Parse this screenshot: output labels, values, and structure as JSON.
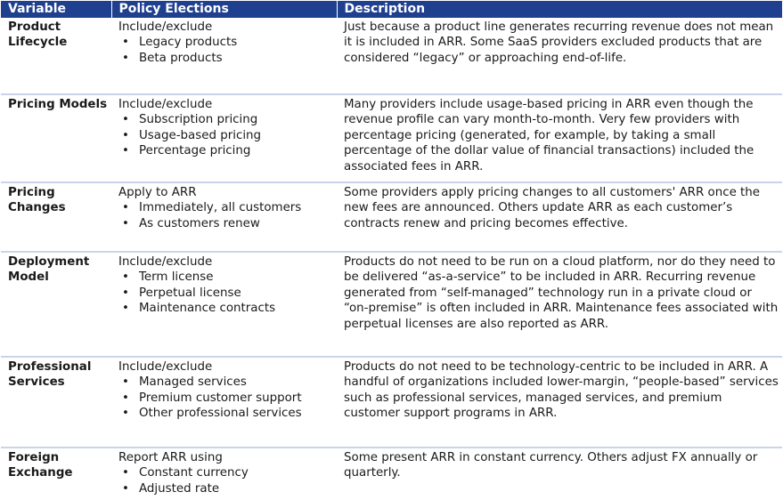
{
  "headers": [
    "Variable",
    "Policy Elections",
    "Description"
  ],
  "rows": [
    {
      "variable": "Product Lifecycle",
      "policy_intro": "Include/exclude",
      "policy_items": [
        "Legacy products",
        "Beta products"
      ],
      "description": "Just because a product line generates recurring revenue does not mean it is included in ARR.  Some SaaS providers excluded products that are considered “legacy” or approaching end-of-life."
    },
    {
      "variable": "Pricing Models",
      "policy_intro": "Include/exclude",
      "policy_items": [
        "Subscription pricing",
        "Usage-based pricing",
        "Percentage pricing"
      ],
      "description": "Many providers include usage-based pricing in ARR even though the revenue profile can vary month-to-month.  Very few providers with percentage pricing (generated, for example, by taking a small percentage of the dollar value of financial transactions) included the associated fees in ARR."
    },
    {
      "variable": "Pricing Changes",
      "policy_intro": "Apply to ARR",
      "policy_items": [
        "Immediately, all customers",
        "As customers renew"
      ],
      "description": "Some providers apply pricing changes to all customers' ARR once the new fees are announced. Others update ARR as each customer’s contracts renew and pricing becomes effective."
    },
    {
      "variable": "Deployment Model",
      "policy_intro": "Include/exclude",
      "policy_items": [
        "Term license",
        "Perpetual license",
        "Maintenance contracts"
      ],
      "description": "Products do not need to be run on a cloud platform, nor do they need to be delivered “as-a-service” to be included in ARR. Recurring revenue generated from “self-managed” technology run in a private cloud or “on-premise” is often included in ARR. Maintenance fees associated with perpetual licenses are also reported as ARR."
    },
    {
      "variable": "Professional Services",
      "policy_intro": "Include/exclude",
      "policy_items": [
        "Managed services",
        "Premium customer support",
        "Other professional services"
      ],
      "description": "Products do not need to be technology-centric to be included in ARR.  A handful of organizations included lower-margin, “people-based” services such as professional services, managed services, and premium customer support programs in ARR."
    },
    {
      "variable": "Foreign Exchange",
      "policy_intro": "Report ARR using",
      "policy_items": [
        "Constant currency",
        "Adjusted rate"
      ],
      "description": "Some present ARR in constant currency.  Others adjust FX annually or quarterly."
    }
  ]
}
